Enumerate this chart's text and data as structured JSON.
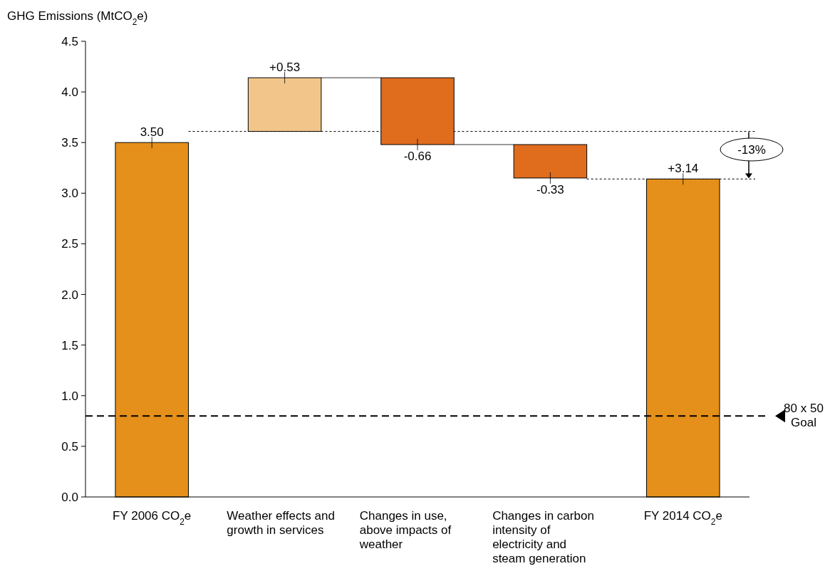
{
  "chart_data": {
    "type": "bar",
    "ylabel": "GHG Emissions (MtCO$_{2}$e)",
    "categories": [
      "FY 2006 CO$_{2}$e",
      "Weather effects and growth in services",
      "Changes in use, above impacts of weather",
      "Changes in carbon  intensity of electricity and steam generation",
      "FY 2014 CO$_{2}$e"
    ],
    "values": [
      3.5,
      0.53,
      -0.66,
      -0.33,
      3.14
    ],
    "base": [
      0,
      3.61,
      4.14,
      3.48,
      0
    ],
    "colors": [
      "#e5901a",
      "#f2c68a",
      "#e06c1e",
      "#e06c1e",
      "#e5901a"
    ],
    "value_labels": [
      "3.50",
      "+0.53",
      "-0.66",
      "-0.33",
      "+3.14"
    ],
    "ylim": [
      0,
      4.5
    ],
    "yticks": [
      {
        "value": 0,
        "label": "0.0"
      },
      0.5,
      {
        "value": 1,
        "label": "1.0"
      },
      1.5,
      {
        "value": 2,
        "label": "2.0"
      },
      2.5,
      {
        "value": 3,
        "label": "3.0"
      },
      3.5,
      {
        "value": 4,
        "label": "4.0"
      },
      4.5
    ],
    "ref_lines": [
      {
        "axis": "y",
        "value": 0.8,
        "label": "80 x 50 Goal",
        "line_style": "dashed",
        "color": "#000000"
      },
      {
        "axis": "y",
        "value": 3.61,
        "line_style": "dotted",
        "color": "#000000"
      },
      {
        "axis": "y",
        "value": 3.14,
        "line_style": "dotted",
        "color": "#000000"
      }
    ],
    "annotations": [
      "-13%"
    ],
    "grid": false
  }
}
